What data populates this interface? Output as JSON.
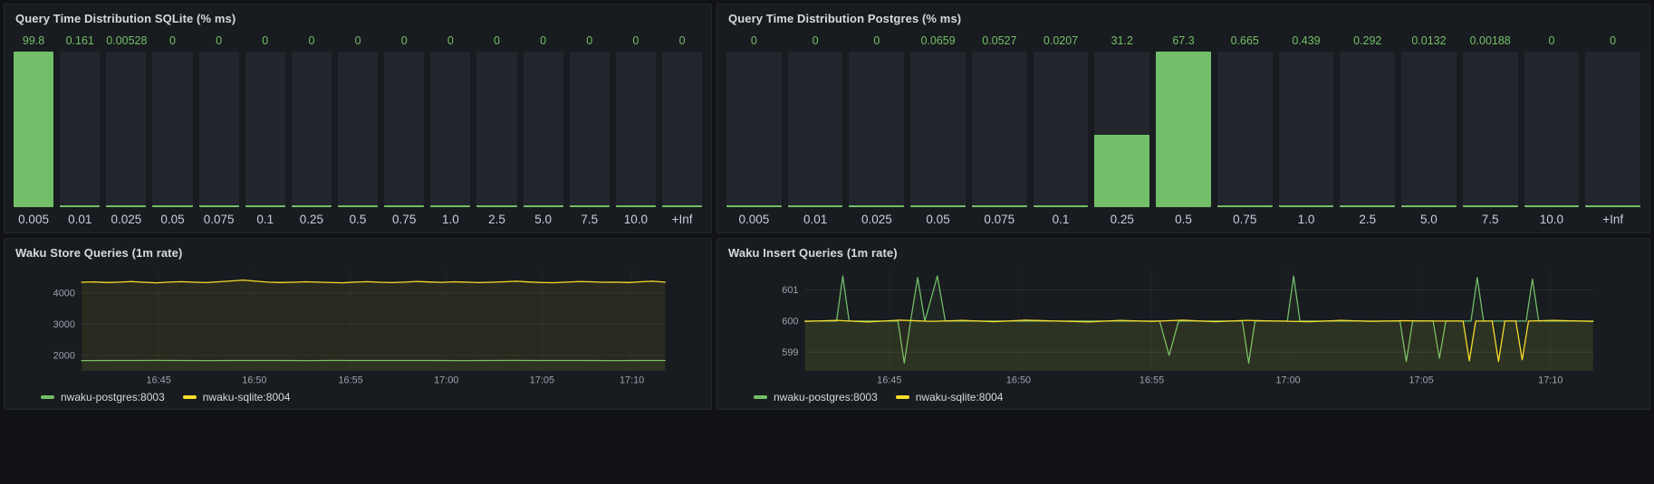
{
  "theme": {
    "page_bg": "#111217",
    "panel_bg": "#181b1f",
    "panel_border": "#26282e",
    "title_color": "#d8d9da",
    "axis_color": "#9da2ab",
    "series_green": "#73bf69",
    "series_yellow": "#fade2a"
  },
  "chart_data": [
    {
      "type": "bar",
      "title": "Query Time Distribution SQLite (% ms)",
      "categories": [
        "0.005",
        "0.01",
        "0.025",
        "0.05",
        "0.075",
        "0.1",
        "0.25",
        "0.5",
        "0.75",
        "1.0",
        "2.5",
        "5.0",
        "7.5",
        "10.0",
        "+Inf"
      ],
      "values": [
        99.8,
        0.161,
        0.00528,
        0,
        0,
        0,
        0,
        0,
        0,
        0,
        0,
        0,
        0,
        0,
        0
      ],
      "value_labels": [
        "99.8",
        "0.161",
        "0.00528",
        "0",
        "0",
        "0",
        "0",
        "0",
        "0",
        "0",
        "0",
        "0",
        "0",
        "0",
        "0"
      ],
      "bar_color": "#73bf69",
      "ylim": [
        0,
        99.8
      ]
    },
    {
      "type": "bar",
      "title": "Query Time Distribution Postgres (% ms)",
      "categories": [
        "0.005",
        "0.01",
        "0.025",
        "0.05",
        "0.075",
        "0.1",
        "0.25",
        "0.5",
        "0.75",
        "1.0",
        "2.5",
        "5.0",
        "7.5",
        "10.0",
        "+Inf"
      ],
      "values": [
        0,
        0,
        0,
        0.0659,
        0.0527,
        0.0207,
        31.2,
        67.3,
        0.665,
        0.439,
        0.292,
        0.0132,
        0.00188,
        0,
        0
      ],
      "value_labels": [
        "0",
        "0",
        "0",
        "0.0659",
        "0.0527",
        "0.0207",
        "31.2",
        "67.3",
        "0.665",
        "0.439",
        "0.292",
        "0.0132",
        "0.00188",
        "0",
        "0"
      ],
      "bar_color": "#73bf69",
      "ylim": [
        0,
        67.3
      ]
    },
    {
      "type": "line",
      "title": "Waku Store Queries (1m rate)",
      "ylim": [
        1500,
        4800
      ],
      "yticks": [
        2000,
        3000,
        4000
      ],
      "xticks": [
        {
          "label": "16:45",
          "t": 0.132
        },
        {
          "label": "16:50",
          "t": 0.296
        },
        {
          "label": "16:55",
          "t": 0.461
        },
        {
          "label": "17:00",
          "t": 0.625
        },
        {
          "label": "17:05",
          "t": 0.789
        },
        {
          "label": "17:10",
          "t": 0.943
        }
      ],
      "grid": true,
      "legend_position": "bottom-left",
      "series": [
        {
          "name": "nwaku-postgres:8003",
          "color": "#73bf69",
          "values": [
            1828,
            1831,
            1829,
            1832,
            1830,
            1827,
            1831,
            1829,
            1830,
            1828,
            1832,
            1830,
            1829,
            1831,
            1830,
            1828,
            1830,
            1832,
            1829,
            1830,
            1831,
            1828,
            1830,
            1829
          ]
        },
        {
          "name": "nwaku-sqlite:8004",
          "color": "#fade2a",
          "values": [
            4345,
            4360,
            4338,
            4352,
            4371,
            4348,
            4330,
            4351,
            4366,
            4350,
            4336,
            4362,
            4388,
            4418,
            4382,
            4352,
            4337,
            4346,
            4361,
            4352,
            4341,
            4331,
            4352,
            4367,
            4347,
            4336,
            4352,
            4372,
            4356,
            4342,
            4362,
            4352,
            4336,
            4347,
            4362,
            4381,
            4356,
            4341,
            4332,
            4352,
            4371,
            4361,
            4346,
            4352,
            4337,
            4362,
            4379,
            4352
          ]
        }
      ]
    },
    {
      "type": "line",
      "title": "Waku Insert Queries (1m rate)",
      "ylim": [
        598.4,
        601.7
      ],
      "yticks": [
        599,
        600,
        601
      ],
      "xticks": [
        {
          "label": "16:45",
          "t": 0.107
        },
        {
          "label": "16:50",
          "t": 0.271
        },
        {
          "label": "16:55",
          "t": 0.44
        },
        {
          "label": "17:00",
          "t": 0.613
        },
        {
          "label": "17:05",
          "t": 0.782
        },
        {
          "label": "17:10",
          "t": 0.946
        }
      ],
      "grid": true,
      "legend_position": "bottom-left",
      "series": [
        {
          "name": "nwaku-postgres:8003",
          "color": "#73bf69",
          "points": [
            [
              0,
              600
            ],
            [
              0.04,
              600
            ],
            [
              0.048,
              601.45
            ],
            [
              0.056,
              600
            ],
            [
              0.118,
              600
            ],
            [
              0.126,
              598.65
            ],
            [
              0.134,
              600
            ],
            [
              0.143,
              601.4
            ],
            [
              0.152,
              600
            ],
            [
              0.168,
              601.45
            ],
            [
              0.178,
              600
            ],
            [
              0.25,
              600
            ],
            [
              0.35,
              600
            ],
            [
              0.45,
              600
            ],
            [
              0.462,
              598.9
            ],
            [
              0.474,
              600
            ],
            [
              0.555,
              600
            ],
            [
              0.563,
              598.65
            ],
            [
              0.571,
              600
            ],
            [
              0.612,
              600
            ],
            [
              0.62,
              601.45
            ],
            [
              0.628,
              600
            ],
            [
              0.755,
              600
            ],
            [
              0.763,
              598.7
            ],
            [
              0.771,
              600
            ],
            [
              0.797,
              600
            ],
            [
              0.805,
              598.8
            ],
            [
              0.813,
              600
            ],
            [
              0.845,
              600
            ],
            [
              0.853,
              601.4
            ],
            [
              0.861,
              600
            ],
            [
              0.915,
              600
            ],
            [
              0.923,
              601.35
            ],
            [
              0.931,
              600
            ],
            [
              1,
              600
            ]
          ]
        },
        {
          "name": "nwaku-sqlite:8004",
          "color": "#fade2a",
          "points": [
            [
              0,
              599.99
            ],
            [
              0.04,
              600.02
            ],
            [
              0.08,
              599.97
            ],
            [
              0.12,
              600.03
            ],
            [
              0.16,
              599.99
            ],
            [
              0.2,
              600.02
            ],
            [
              0.24,
              599.98
            ],
            [
              0.28,
              600.03
            ],
            [
              0.32,
              600
            ],
            [
              0.36,
              599.97
            ],
            [
              0.4,
              600.02
            ],
            [
              0.44,
              599.99
            ],
            [
              0.48,
              600.03
            ],
            [
              0.52,
              599.98
            ],
            [
              0.56,
              600.02
            ],
            [
              0.6,
              600
            ],
            [
              0.64,
              599.98
            ],
            [
              0.68,
              600.02
            ],
            [
              0.72,
              599.99
            ],
            [
              0.76,
              600.01
            ],
            [
              0.8,
              600
            ],
            [
              0.835,
              600
            ],
            [
              0.843,
              598.72
            ],
            [
              0.851,
              600
            ],
            [
              0.872,
              600
            ],
            [
              0.88,
              598.7
            ],
            [
              0.888,
              600
            ],
            [
              0.902,
              600
            ],
            [
              0.91,
              598.75
            ],
            [
              0.918,
              600
            ],
            [
              0.95,
              600.02
            ],
            [
              1,
              599.99
            ]
          ]
        }
      ]
    }
  ]
}
